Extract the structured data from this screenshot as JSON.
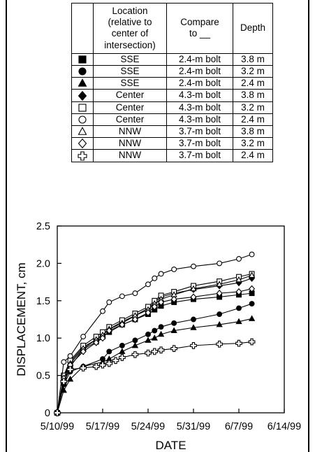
{
  "legend_table": {
    "headers": {
      "location": "Location\n(relative to\ncenter of\nintersection)",
      "compare": "Compare\nto __",
      "depth": "Depth"
    },
    "rows": [
      {
        "marker": "filled-square",
        "location": "SSE",
        "compare": "2.4-m bolt",
        "depth": "3.8 m"
      },
      {
        "marker": "filled-circle",
        "location": "SSE",
        "compare": "2.4-m bolt",
        "depth": "3.2 m"
      },
      {
        "marker": "filled-triangle",
        "location": "SSE",
        "compare": "2.4-m bolt",
        "depth": "2.4 m"
      },
      {
        "marker": "filled-diamond",
        "location": "Center",
        "compare": "4.3-m bolt",
        "depth": "3.8 m"
      },
      {
        "marker": "open-square",
        "location": "Center",
        "compare": "4.3-m bolt",
        "depth": "3.2 m"
      },
      {
        "marker": "open-circle",
        "location": "Center",
        "compare": "4.3-m bolt",
        "depth": "2.4 m"
      },
      {
        "marker": "open-triangle",
        "location": "NNW",
        "compare": "3.7-m bolt",
        "depth": "3.8 m"
      },
      {
        "marker": "open-diamond",
        "location": "NNW",
        "compare": "3.7-m bolt",
        "depth": "3.2 m"
      },
      {
        "marker": "open-cross",
        "location": "NNW",
        "compare": "3.7-m bolt",
        "depth": "2.4 m"
      }
    ]
  },
  "chart_data": {
    "type": "line",
    "xlabel": "DATE",
    "ylabel": "DISPLACEMENT, cm",
    "xlim": [
      "1999-05-10",
      "1999-06-14"
    ],
    "ylim": [
      0,
      2.5
    ],
    "xticks": [
      "5/10/99",
      "5/17/99",
      "5/24/99",
      "5/31/99",
      "6/7/99",
      "6/14/99"
    ],
    "yticks": [
      "0",
      "0.5",
      "1.0",
      "1.5",
      "2.0",
      "2.5"
    ],
    "grid": false,
    "series": [
      {
        "marker": "filled-square",
        "points": [
          [
            "1999-05-10",
            0
          ],
          [
            "1999-05-11",
            0.42
          ],
          [
            "1999-05-12",
            0.62
          ],
          [
            "1999-05-14",
            0.85
          ],
          [
            "1999-05-16",
            0.95
          ],
          [
            "1999-05-17",
            1.02
          ],
          [
            "1999-05-18",
            1.08
          ],
          [
            "1999-05-20",
            1.18
          ],
          [
            "1999-05-22",
            1.25
          ],
          [
            "1999-05-24",
            1.32
          ],
          [
            "1999-05-25",
            1.38
          ],
          [
            "1999-05-26",
            1.43
          ],
          [
            "1999-05-28",
            1.48
          ],
          [
            "1999-05-31",
            1.52
          ],
          [
            "1999-06-04",
            1.55
          ],
          [
            "1999-06-07",
            1.58
          ],
          [
            "1999-06-09",
            1.6
          ]
        ]
      },
      {
        "marker": "filled-circle",
        "points": [
          [
            "1999-05-10",
            0
          ],
          [
            "1999-05-11",
            0.38
          ],
          [
            "1999-05-12",
            0.55
          ],
          [
            "1999-05-14",
            0.62
          ],
          [
            "1999-05-17",
            0.72
          ],
          [
            "1999-05-18",
            0.82
          ],
          [
            "1999-05-20",
            0.9
          ],
          [
            "1999-05-22",
            0.97
          ],
          [
            "1999-05-24",
            1.05
          ],
          [
            "1999-05-25",
            1.1
          ],
          [
            "1999-05-26",
            1.15
          ],
          [
            "1999-05-28",
            1.2
          ],
          [
            "1999-05-31",
            1.25
          ],
          [
            "1999-06-04",
            1.32
          ],
          [
            "1999-06-07",
            1.4
          ],
          [
            "1999-06-09",
            1.46
          ]
        ]
      },
      {
        "marker": "filled-triangle",
        "points": [
          [
            "1999-05-10",
            0
          ],
          [
            "1999-05-11",
            0.3
          ],
          [
            "1999-05-12",
            0.45
          ],
          [
            "1999-05-14",
            0.62
          ],
          [
            "1999-05-17",
            0.68
          ],
          [
            "1999-05-18",
            0.72
          ],
          [
            "1999-05-20",
            0.82
          ],
          [
            "1999-05-22",
            0.9
          ],
          [
            "1999-05-24",
            0.97
          ],
          [
            "1999-05-25",
            1.0
          ],
          [
            "1999-05-26",
            1.05
          ],
          [
            "1999-05-28",
            1.1
          ],
          [
            "1999-05-31",
            1.14
          ],
          [
            "1999-06-04",
            1.18
          ],
          [
            "1999-06-07",
            1.22
          ],
          [
            "1999-06-09",
            1.26
          ]
        ]
      },
      {
        "marker": "filled-diamond",
        "points": [
          [
            "1999-05-10",
            0
          ],
          [
            "1999-05-11",
            0.48
          ],
          [
            "1999-05-12",
            0.68
          ],
          [
            "1999-05-14",
            0.88
          ],
          [
            "1999-05-16",
            0.98
          ],
          [
            "1999-05-17",
            1.05
          ],
          [
            "1999-05-18",
            1.12
          ],
          [
            "1999-05-20",
            1.22
          ],
          [
            "1999-05-22",
            1.3
          ],
          [
            "1999-05-24",
            1.4
          ],
          [
            "1999-05-25",
            1.48
          ],
          [
            "1999-05-26",
            1.55
          ],
          [
            "1999-05-28",
            1.6
          ],
          [
            "1999-05-31",
            1.65
          ],
          [
            "1999-06-04",
            1.7
          ],
          [
            "1999-06-07",
            1.74
          ],
          [
            "1999-06-09",
            1.8
          ]
        ]
      },
      {
        "marker": "open-square",
        "points": [
          [
            "1999-05-10",
            0
          ],
          [
            "1999-05-11",
            0.5
          ],
          [
            "1999-05-12",
            0.7
          ],
          [
            "1999-05-14",
            0.9
          ],
          [
            "1999-05-16",
            1.02
          ],
          [
            "1999-05-17",
            1.08
          ],
          [
            "1999-05-18",
            1.15
          ],
          [
            "1999-05-20",
            1.24
          ],
          [
            "1999-05-22",
            1.33
          ],
          [
            "1999-05-24",
            1.42
          ],
          [
            "1999-05-25",
            1.5
          ],
          [
            "1999-05-26",
            1.57
          ],
          [
            "1999-05-28",
            1.62
          ],
          [
            "1999-05-31",
            1.7
          ],
          [
            "1999-06-04",
            1.76
          ],
          [
            "1999-06-07",
            1.82
          ],
          [
            "1999-06-09",
            1.86
          ]
        ]
      },
      {
        "marker": "open-circle",
        "points": [
          [
            "1999-05-10",
            0
          ],
          [
            "1999-05-11",
            0.68
          ],
          [
            "1999-05-12",
            0.76
          ],
          [
            "1999-05-14",
            1.02
          ],
          [
            "1999-05-17",
            1.36
          ],
          [
            "1999-05-18",
            1.48
          ],
          [
            "1999-05-20",
            1.56
          ],
          [
            "1999-05-22",
            1.6
          ],
          [
            "1999-05-24",
            1.72
          ],
          [
            "1999-05-25",
            1.8
          ],
          [
            "1999-05-26",
            1.86
          ],
          [
            "1999-05-28",
            1.92
          ],
          [
            "1999-05-31",
            1.96
          ],
          [
            "1999-06-04",
            2.0
          ],
          [
            "1999-06-07",
            2.06
          ],
          [
            "1999-06-09",
            2.12
          ]
        ]
      },
      {
        "marker": "open-triangle",
        "points": [
          [
            "1999-05-10",
            0
          ],
          [
            "1999-05-11",
            0.46
          ],
          [
            "1999-05-12",
            0.66
          ],
          [
            "1999-05-14",
            0.86
          ],
          [
            "1999-05-16",
            0.98
          ],
          [
            "1999-05-17",
            1.04
          ],
          [
            "1999-05-18",
            1.12
          ],
          [
            "1999-05-20",
            1.2
          ],
          [
            "1999-05-22",
            1.3
          ],
          [
            "1999-05-24",
            1.38
          ],
          [
            "1999-05-25",
            1.46
          ],
          [
            "1999-05-26",
            1.52
          ],
          [
            "1999-05-28",
            1.58
          ],
          [
            "1999-05-31",
            1.66
          ],
          [
            "1999-06-04",
            1.72
          ],
          [
            "1999-06-07",
            1.78
          ],
          [
            "1999-06-09",
            1.84
          ]
        ]
      },
      {
        "marker": "open-diamond",
        "points": [
          [
            "1999-05-10",
            0
          ],
          [
            "1999-05-11",
            0.46
          ],
          [
            "1999-05-12",
            0.64
          ],
          [
            "1999-05-14",
            0.82
          ],
          [
            "1999-05-16",
            0.94
          ],
          [
            "1999-05-17",
            1.0
          ],
          [
            "1999-05-18",
            1.1
          ],
          [
            "1999-05-20",
            1.18
          ],
          [
            "1999-05-22",
            1.25
          ],
          [
            "1999-05-24",
            1.34
          ],
          [
            "1999-05-25",
            1.42
          ],
          [
            "1999-05-26",
            1.48
          ],
          [
            "1999-05-28",
            1.52
          ],
          [
            "1999-05-31",
            1.55
          ],
          [
            "1999-06-04",
            1.6
          ],
          [
            "1999-06-07",
            1.62
          ],
          [
            "1999-06-09",
            1.66
          ]
        ]
      },
      {
        "marker": "open-cross",
        "points": [
          [
            "1999-05-10",
            0
          ],
          [
            "1999-05-11",
            0.42
          ],
          [
            "1999-05-12",
            0.58
          ],
          [
            "1999-05-14",
            0.6
          ],
          [
            "1999-05-16",
            0.62
          ],
          [
            "1999-05-17",
            0.64
          ],
          [
            "1999-05-18",
            0.66
          ],
          [
            "1999-05-19",
            0.7
          ],
          [
            "1999-05-20",
            0.74
          ],
          [
            "1999-05-22",
            0.78
          ],
          [
            "1999-05-24",
            0.8
          ],
          [
            "1999-05-25",
            0.82
          ],
          [
            "1999-05-26",
            0.84
          ],
          [
            "1999-05-28",
            0.86
          ],
          [
            "1999-05-31",
            0.9
          ],
          [
            "1999-06-04",
            0.92
          ],
          [
            "1999-06-07",
            0.93
          ],
          [
            "1999-06-09",
            0.95
          ]
        ]
      }
    ]
  }
}
